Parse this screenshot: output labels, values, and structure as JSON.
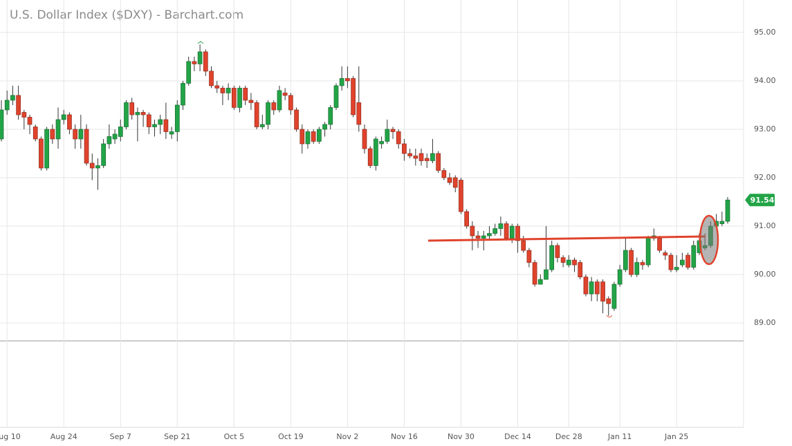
{
  "chart_data": {
    "type": "candlestick",
    "title": "U.S. Dollar Index ($DXY) - Barchart.com",
    "up_color": "#22a447",
    "down_color": "#e0432c",
    "grid": true,
    "ylim": [
      88.63,
      95.67
    ],
    "yticks": [
      {
        "value": 95,
        "label": "95.00"
      },
      {
        "value": 94,
        "label": "94.00"
      },
      {
        "value": 93,
        "label": "93.00"
      },
      {
        "value": 92,
        "label": "92.00"
      },
      {
        "value": 91,
        "label": "91.00"
      },
      {
        "value": 90,
        "label": "90.00"
      },
      {
        "value": 89,
        "label": "89.00"
      }
    ],
    "xticks": [
      "Aug 10",
      "Aug 24",
      "Sep 7",
      "Sep 21",
      "Oct 5",
      "Oct 19",
      "Nov 2",
      "Nov 16",
      "Nov 30",
      "Dec 14",
      "Dec 28",
      "Jan 11",
      "Jan 25"
    ],
    "categories": [
      "Aug 7",
      "Aug 10",
      "Aug 11",
      "Aug 12",
      "Aug 13",
      "Aug 14",
      "Aug 17",
      "Aug 18",
      "Aug 19",
      "Aug 20",
      "Aug 21",
      "Aug 24",
      "Aug 25",
      "Aug 26",
      "Aug 27",
      "Aug 28",
      "Aug 31",
      "Sep 1",
      "Sep 2",
      "Sep 3",
      "Sep 4",
      "Sep 7",
      "Sep 8",
      "Sep 9",
      "Sep 10",
      "Sep 11",
      "Sep 14",
      "Sep 15",
      "Sep 16",
      "Sep 17",
      "Sep 18",
      "Sep 21",
      "Sep 22",
      "Sep 23",
      "Sep 24",
      "Sep 25",
      "Sep 28",
      "Sep 29",
      "Sep 30",
      "Oct 1",
      "Oct 2",
      "Oct 5",
      "Oct 6",
      "Oct 7",
      "Oct 8",
      "Oct 9",
      "Oct 12",
      "Oct 13",
      "Oct 14",
      "Oct 15",
      "Oct 16",
      "Oct 19",
      "Oct 20",
      "Oct 21",
      "Oct 22",
      "Oct 23",
      "Oct 26",
      "Oct 27",
      "Oct 28",
      "Oct 29",
      "Oct 30",
      "Nov 2",
      "Nov 3",
      "Nov 4",
      "Nov 5",
      "Nov 6",
      "Nov 9",
      "Nov 10",
      "Nov 11",
      "Nov 12",
      "Nov 13",
      "Nov 16",
      "Nov 17",
      "Nov 18",
      "Nov 19",
      "Nov 20",
      "Nov 23",
      "Nov 24",
      "Nov 25",
      "Nov 26",
      "Nov 27",
      "Nov 30",
      "Dec 1",
      "Dec 2",
      "Dec 3",
      "Dec 4",
      "Dec 7",
      "Dec 8",
      "Dec 9",
      "Dec 10",
      "Dec 11",
      "Dec 14",
      "Dec 15",
      "Dec 16",
      "Dec 17",
      "Dec 18",
      "Dec 21",
      "Dec 22",
      "Dec 23",
      "Dec 24",
      "Dec 28",
      "Dec 29",
      "Dec 30",
      "Dec 31",
      "Jan 4",
      "Jan 5",
      "Jan 6",
      "Jan 7",
      "Jan 8",
      "Jan 11",
      "Jan 12",
      "Jan 13",
      "Jan 14",
      "Jan 15",
      "Jan 18",
      "Jan 19",
      "Jan 20",
      "Jan 21",
      "Jan 22",
      "Jan 25",
      "Jan 26",
      "Jan 27",
      "Jan 28",
      "Jan 29",
      "Feb 1",
      "Feb 2",
      "Feb 3",
      "Feb 4",
      "Feb 5"
    ],
    "open": [
      92.8,
      93.4,
      93.6,
      93.7,
      93.35,
      93.25,
      93.05,
      92.8,
      92.2,
      93.0,
      92.8,
      93.2,
      93.3,
      93.0,
      92.8,
      93.0,
      92.3,
      92.2,
      92.25,
      92.7,
      92.8,
      92.85,
      93.05,
      93.55,
      93.3,
      93.35,
      93.3,
      93.05,
      93.1,
      93.2,
      92.9,
      92.95,
      93.5,
      93.95,
      94.4,
      94.35,
      94.6,
      94.2,
      93.9,
      93.85,
      93.75,
      93.85,
      93.45,
      93.85,
      93.6,
      93.55,
      93.05,
      93.1,
      93.55,
      93.4,
      93.75,
      93.7,
      93.4,
      93.0,
      92.7,
      92.95,
      92.75,
      93.0,
      93.1,
      93.45,
      93.9,
      94.05,
      94.05,
      93.55,
      93.0,
      92.6,
      92.25,
      92.7,
      92.75,
      93.0,
      92.95,
      92.7,
      92.5,
      92.45,
      92.5,
      92.4,
      92.35,
      92.5,
      92.15,
      92.0,
      92.0,
      91.95,
      91.3,
      91.0,
      90.8,
      90.75,
      90.8,
      90.85,
      90.95,
      91.05,
      90.75,
      91.0,
      90.7,
      90.5,
      90.25,
      89.8,
      89.9,
      90.1,
      90.6,
      90.35,
      90.2,
      90.3,
      90.25,
      89.95,
      89.6,
      89.85,
      89.85,
      89.5,
      89.3,
      89.8,
      90.1,
      90.5,
      90.0,
      90.25,
      90.2,
      90.75,
      90.75,
      90.45,
      90.4,
      90.1,
      90.2,
      90.4,
      90.15,
      90.45,
      90.55,
      90.6,
      91.0,
      91.05,
      91.1
    ],
    "high": [
      93.6,
      93.8,
      93.9,
      93.9,
      93.4,
      93.3,
      93.1,
      92.85,
      93.05,
      93.1,
      93.45,
      93.4,
      93.35,
      93.1,
      93.3,
      93.1,
      92.5,
      92.4,
      92.8,
      93.1,
      93.0,
      93.2,
      93.6,
      93.65,
      93.45,
      93.4,
      93.35,
      93.2,
      93.3,
      93.55,
      93.05,
      93.6,
      94.0,
      94.5,
      94.5,
      94.75,
      94.65,
      94.3,
      94.0,
      93.9,
      93.95,
      93.9,
      93.9,
      93.9,
      93.75,
      93.6,
      93.3,
      93.6,
      93.6,
      93.9,
      93.85,
      93.75,
      93.45,
      93.1,
      93.0,
      93.0,
      93.05,
      93.15,
      93.5,
      93.95,
      94.3,
      94.3,
      94.1,
      94.3,
      93.1,
      92.65,
      92.85,
      92.85,
      93.2,
      93.05,
      93.0,
      92.8,
      92.6,
      92.6,
      92.6,
      92.5,
      92.8,
      92.55,
      92.2,
      92.1,
      92.05,
      92.0,
      91.35,
      91.1,
      90.9,
      90.9,
      91.0,
      91.05,
      91.2,
      91.1,
      91.05,
      91.05,
      90.8,
      90.55,
      90.3,
      90.0,
      91.0,
      90.7,
      90.65,
      90.4,
      90.4,
      90.35,
      90.3,
      90.0,
      89.95,
      89.9,
      89.9,
      89.55,
      89.85,
      90.2,
      90.75,
      90.55,
      90.35,
      90.3,
      90.8,
      90.95,
      90.8,
      90.5,
      90.45,
      90.4,
      90.45,
      90.45,
      90.7,
      90.85,
      90.85,
      91.1,
      91.25,
      91.3,
      91.6
    ],
    "low": [
      92.75,
      93.3,
      93.5,
      93.2,
      93.0,
      92.9,
      92.75,
      92.15,
      92.15,
      92.7,
      92.6,
      93.1,
      92.9,
      92.6,
      92.6,
      92.25,
      91.95,
      91.75,
      92.2,
      92.6,
      92.7,
      92.75,
      93.0,
      93.2,
      92.75,
      93.05,
      92.9,
      92.85,
      92.9,
      92.8,
      92.8,
      92.75,
      93.4,
      93.9,
      94.2,
      94.2,
      94.1,
      93.85,
      93.75,
      93.5,
      93.6,
      93.4,
      93.35,
      93.5,
      93.4,
      93.0,
      93.0,
      93.0,
      93.3,
      93.35,
      93.6,
      93.3,
      92.95,
      92.5,
      92.6,
      92.7,
      92.7,
      92.85,
      93.0,
      93.4,
      93.8,
      93.85,
      93.25,
      92.95,
      92.5,
      92.2,
      92.15,
      92.6,
      92.7,
      92.8,
      92.6,
      92.35,
      92.4,
      92.25,
      92.25,
      92.2,
      92.3,
      92.1,
      91.95,
      91.85,
      91.7,
      91.25,
      90.95,
      90.5,
      90.55,
      90.5,
      90.7,
      90.8,
      90.8,
      90.7,
      90.65,
      90.45,
      90.45,
      90.15,
      89.75,
      89.8,
      89.9,
      90.05,
      90.25,
      90.15,
      90.15,
      90.05,
      89.9,
      89.55,
      89.45,
      89.45,
      89.2,
      89.15,
      89.25,
      89.75,
      90.05,
      89.95,
      89.95,
      90.1,
      90.15,
      90.7,
      90.45,
      90.3,
      90.05,
      90.05,
      90.15,
      90.1,
      90.1,
      90.4,
      90.5,
      90.55,
      90.95,
      91.0,
      91.05
    ],
    "close": [
      93.4,
      93.6,
      93.7,
      93.3,
      93.25,
      93.1,
      92.8,
      92.2,
      93.0,
      92.8,
      93.2,
      93.3,
      93.0,
      92.8,
      93.0,
      92.3,
      92.2,
      92.25,
      92.7,
      92.85,
      92.9,
      93.05,
      93.55,
      93.3,
      93.35,
      93.3,
      93.05,
      93.1,
      93.2,
      92.95,
      92.95,
      93.5,
      93.95,
      94.4,
      94.35,
      94.6,
      94.2,
      93.9,
      93.85,
      93.75,
      93.85,
      93.45,
      93.85,
      93.6,
      93.55,
      93.05,
      93.1,
      93.55,
      93.4,
      93.8,
      93.7,
      93.4,
      93.0,
      92.7,
      92.95,
      92.75,
      93.0,
      93.1,
      93.45,
      93.9,
      94.05,
      94.0,
      93.3,
      93.1,
      92.6,
      92.25,
      92.8,
      92.75,
      93.0,
      92.95,
      92.7,
      92.5,
      92.45,
      92.4,
      92.35,
      92.35,
      92.5,
      92.15,
      92.0,
      91.9,
      91.8,
      91.3,
      91.0,
      90.8,
      90.75,
      90.8,
      90.85,
      90.95,
      91.05,
      90.75,
      91.0,
      90.7,
      90.5,
      90.25,
      89.8,
      89.9,
      90.1,
      90.6,
      90.35,
      90.25,
      90.3,
      90.2,
      89.95,
      89.6,
      89.85,
      89.6,
      89.45,
      89.4,
      89.8,
      90.1,
      90.5,
      90.0,
      90.25,
      90.2,
      90.75,
      90.8,
      90.5,
      90.4,
      90.1,
      90.15,
      90.3,
      90.15,
      90.6,
      90.7,
      90.6,
      91.0,
      91.1,
      91.1,
      91.54
    ]
  }
}
